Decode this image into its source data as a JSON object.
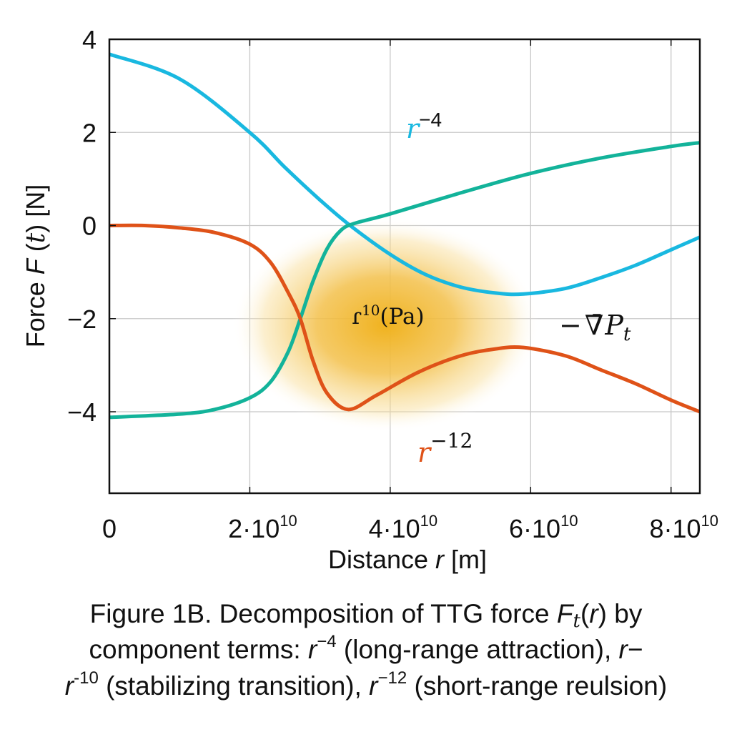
{
  "chart_data": {
    "type": "line",
    "title": "",
    "xlabel": "Distance r [m]",
    "xlabel_parts": {
      "prefix": "Distance ",
      "var": "r",
      "suffix": " [m]"
    },
    "ylabel": "Force F (t) [N]",
    "ylabel_parts": {
      "prefix": "Force ",
      "var": "F",
      "mid": " (",
      "arg": "t",
      "suffix": ") [N]"
    },
    "xlim": [
      0,
      84100000000.0
    ],
    "ylim": [
      -5.75,
      4.0
    ],
    "grid": true,
    "x_ticks": [
      {
        "value": 0,
        "mantissa": "0",
        "exp": ""
      },
      {
        "value": 20000000000.0,
        "mantissa": "2·10",
        "exp": "10"
      },
      {
        "value": 40000000000.0,
        "mantissa": "4·10",
        "exp": "10"
      },
      {
        "value": 60000000000.0,
        "mantissa": "6·10",
        "exp": "10"
      },
      {
        "value": 80000000000.0,
        "mantissa": "8·10",
        "exp": "10"
      }
    ],
    "y_ticks": [
      {
        "value": 4,
        "label": "4"
      },
      {
        "value": 2,
        "label": "2"
      },
      {
        "value": 0,
        "label": "0"
      },
      {
        "value": -2,
        "label": "−2"
      },
      {
        "value": -4,
        "label": "−4"
      }
    ],
    "series": [
      {
        "name": "r^-4 (long-range attraction)",
        "color": "#19b8e0",
        "x": [
          0,
          10000000000.0,
          20000000000.0,
          25000000000.0,
          30000000000.0,
          34300000000.0,
          40000000000.0,
          45000000000.0,
          50000000000.0,
          55000000000.0,
          59000000000.0,
          65000000000.0,
          70000000000.0,
          75000000000.0,
          80000000000.0,
          84100000000.0
        ],
        "y": [
          3.68,
          3.15,
          2.0,
          1.25,
          0.55,
          0.0,
          -0.62,
          -1.05,
          -1.32,
          -1.45,
          -1.47,
          -1.35,
          -1.12,
          -0.85,
          -0.52,
          -0.25
        ]
      },
      {
        "name": "-∇P_t (stabilizing transition)",
        "color": "#13b39a",
        "x": [
          0,
          10000000000.0,
          15000000000.0,
          20000000000.0,
          23000000000.0,
          25500000000.0,
          27200000000.0,
          29000000000.0,
          31000000000.0,
          33000000000.0,
          35000000000.0,
          40000000000.0,
          50000000000.0,
          60000000000.0,
          70000000000.0,
          80000000000.0,
          84100000000.0
        ],
        "y": [
          -4.12,
          -4.05,
          -3.95,
          -3.7,
          -3.35,
          -2.7,
          -2.0,
          -1.2,
          -0.5,
          -0.1,
          0.05,
          0.25,
          0.7,
          1.12,
          1.45,
          1.7,
          1.78
        ]
      },
      {
        "name": "r^-12 (short-range repulsion)",
        "color": "#df5218",
        "x": [
          0,
          5000000000.0,
          10000000000.0,
          15000000000.0,
          20000000000.0,
          23000000000.0,
          25500000000.0,
          27200000000.0,
          29000000000.0,
          31000000000.0,
          34000000000.0,
          38000000000.0,
          44000000000.0,
          50000000000.0,
          55000000000.0,
          59000000000.0,
          65000000000.0,
          70000000000.0,
          75000000000.0,
          80000000000.0,
          84100000000.0
        ],
        "y": [
          0.0,
          0.0,
          -0.05,
          -0.15,
          -0.4,
          -0.8,
          -1.45,
          -2.0,
          -2.9,
          -3.6,
          -3.95,
          -3.65,
          -3.15,
          -2.8,
          -2.65,
          -2.62,
          -2.8,
          -3.1,
          -3.4,
          -3.75,
          -4.0
        ]
      }
    ],
    "highlight_region": {
      "label": "r^10 (Pa)",
      "center": [
        39400000000.0,
        -2.14
      ],
      "color": "#f0b21e"
    },
    "annotations": [
      {
        "id": "r4",
        "base": "r",
        "exp": "−4",
        "at": [
          43500000000.0,
          2.05
        ],
        "color": "#19b8e0"
      },
      {
        "id": "r12",
        "base": "r",
        "exp": "−12",
        "at": [
          46000000000.0,
          -4.95
        ],
        "color": "#df5218"
      },
      {
        "id": "r10",
        "base": "ɾ",
        "exp": "10",
        "rest": "(Pa)",
        "at": [
          36000000000.0,
          -2.0
        ],
        "color": "#111111"
      },
      {
        "id": "gradP",
        "text_minus": "−",
        "text_nabla": "∇̄",
        "text_var": "P",
        "text_sub": "t",
        "at": [
          65000000000.0,
          -2.0
        ],
        "color": "#111111"
      }
    ]
  },
  "caption": {
    "line1_a": "Figure 1B. Decomposition of TTG force ",
    "line1_var": "F",
    "line1_sub": "t",
    "line1_b": "(",
    "line1_arg": "r",
    "line1_c": ") by",
    "line2_a": "component terms: ",
    "line2_var": "r",
    "line2_exp": "−4",
    "line2_b": " (long-range attraction), ",
    "line2_var2": "r",
    "line2_c": "−",
    "line3_var": "r",
    "line3_exp": "-10",
    "line3_a": " (stabilizing transition), ",
    "line3_var2": "r",
    "line3_exp2": "−12",
    "line3_b": " (short-range reulsion)"
  }
}
